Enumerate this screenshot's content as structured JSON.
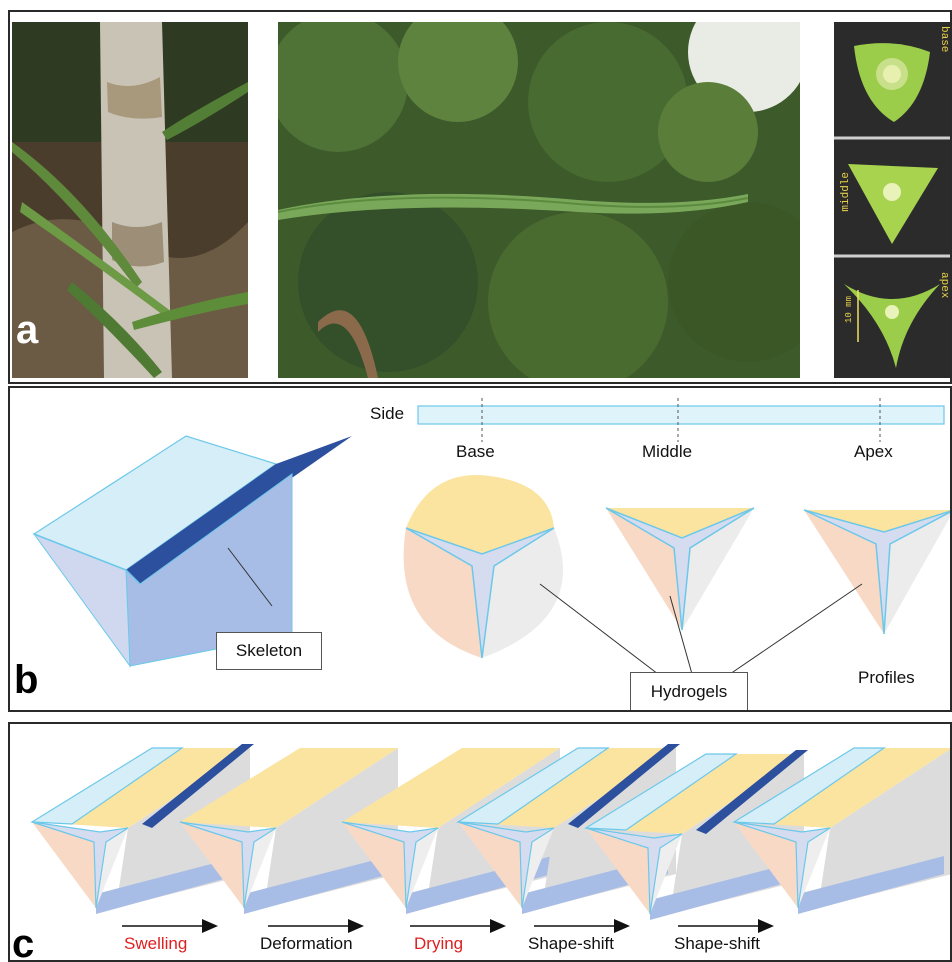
{
  "panel_a": {
    "letter": "a",
    "section_labels": [
      "base",
      "middle",
      "apex"
    ],
    "scale_bar": "10 mm"
  },
  "panel_b": {
    "letter": "b",
    "side_label": "Side",
    "positions": [
      "Base",
      "Middle",
      "Apex"
    ],
    "skeleton_label": "Skeleton",
    "hydrogels_label": "Hydrogels",
    "profiles_label": "Profiles"
  },
  "panel_c": {
    "letter": "c",
    "steps": [
      {
        "label": "Swelling",
        "color": "#e02020"
      },
      {
        "label": "Deformation",
        "color": "#111111"
      },
      {
        "label": "Drying",
        "color": "#e02020"
      },
      {
        "label": "Shape-shift",
        "color": "#111111"
      },
      {
        "label": "Shape-shift",
        "color": "#111111"
      }
    ]
  },
  "colors": {
    "skeleton_light": "#d6eef8",
    "skeleton_mid": "#a8bde6",
    "skeleton_dark": "#2c4f9e",
    "hydrogel_yellow": "#fbe3a0",
    "hydrogel_peach": "#f7d9c6",
    "hydrogel_grey": "#ececec",
    "outline_cyan": "#6cc8ea"
  }
}
